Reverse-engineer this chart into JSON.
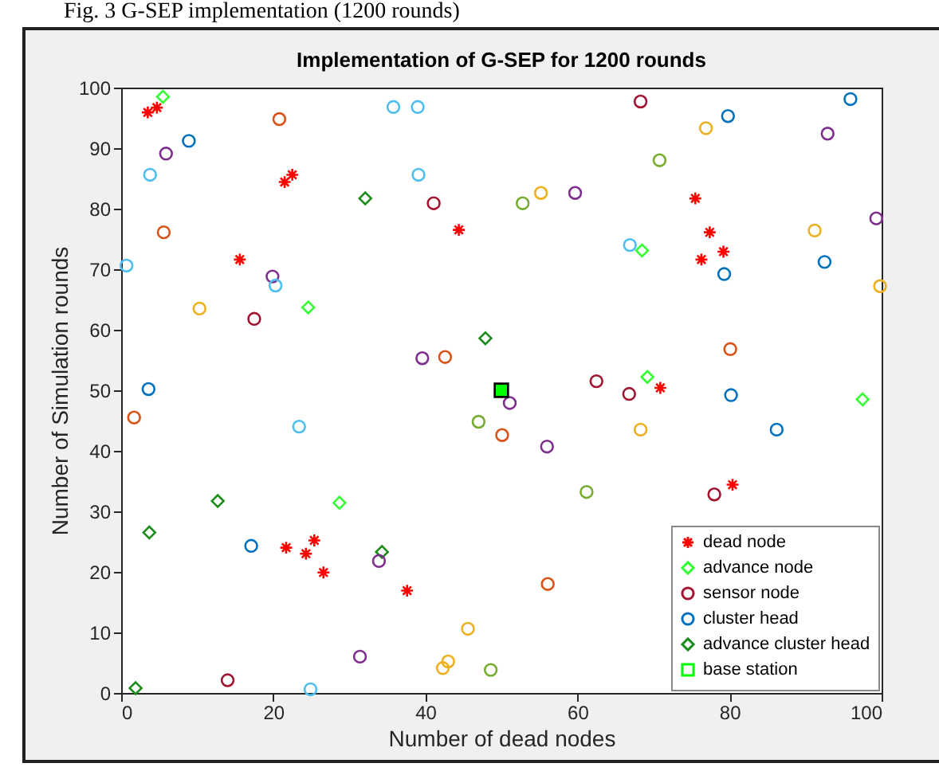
{
  "chart_data": {
    "type": "scatter",
    "title": "Implementation of G-SEP for 1200 rounds",
    "xlabel": "Number of dead nodes",
    "ylabel": "Number of Simulation rounds",
    "annotations": [
      "Fig. 3 G-SEP implementation (1200 rounds)"
    ],
    "xlim": [
      0,
      100
    ],
    "ylim": [
      0,
      100
    ],
    "xticks": [
      0,
      20,
      40,
      60,
      80,
      100
    ],
    "yticks": [
      0,
      10,
      20,
      30,
      40,
      50,
      60,
      70,
      80,
      90,
      100
    ],
    "grid": false,
    "legend": "bottom right",
    "series": [
      {
        "name": "dead node",
        "marker": "cross",
        "color": "#ff0000",
        "x": [
          3.5,
          4.7,
          15.6,
          21.5,
          22.5,
          44.4,
          75.5,
          77.4,
          79.2,
          76.3,
          21.7,
          24.3,
          25.4,
          26.6,
          37.6,
          70.9,
          80.4
        ],
        "values": [
          95.9,
          96.7,
          71.6,
          84.4,
          85.6,
          76.5,
          81.7,
          76.1,
          72.9,
          71.6,
          24.0,
          23.0,
          25.2,
          19.9,
          16.9,
          50.4,
          34.4
        ]
      },
      {
        "name": "advance node",
        "marker": "diamond",
        "color": "#33ff33",
        "x": [
          5.5,
          24.6,
          68.5,
          28.7,
          69.2,
          97.5
        ],
        "values": [
          98.5,
          63.7,
          73.1,
          31.4,
          52.2,
          48.5
        ]
      },
      {
        "name": "sensor node",
        "marker": "circle",
        "color": "#a2142f",
        "x": [
          5.9,
          3.8,
          5.6,
          0.7,
          10.3,
          19.9,
          20.3,
          17.5,
          20.8,
          35.8,
          39.0,
          39.1,
          41.1,
          52.8,
          39.6,
          42.6,
          68.3,
          76.9,
          79.8,
          92.9,
          70.8,
          55.2,
          59.7,
          66.9,
          79.3,
          91.2,
          92.5,
          99.3,
          99.8,
          80.1,
          1.7,
          23.4,
          51.1,
          47.0,
          50.1,
          17.1,
          33.9,
          45.6,
          42.3,
          43.0,
          48.6,
          31.4,
          14.0,
          24.9,
          62.5,
          66.8,
          80.2,
          86.2,
          68.3,
          56.0,
          61.2,
          78.0,
          56.1
        ],
        "values": [
          89.1,
          85.6,
          76.1,
          70.6,
          63.5,
          68.8,
          67.3,
          61.8,
          94.8,
          96.8,
          96.8,
          85.6,
          80.9,
          80.9,
          55.3,
          55.5,
          97.7,
          93.3,
          95.3,
          92.4,
          88.0,
          82.6,
          82.6,
          74.0,
          69.2,
          76.4,
          71.2,
          78.4,
          67.2,
          56.8,
          45.5,
          44.0,
          47.9,
          44.8,
          42.6,
          24.3,
          21.8,
          10.6,
          4.1,
          5.2,
          3.8,
          6.0,
          2.1,
          0.6,
          51.5,
          49.4,
          49.2,
          43.5,
          43.5,
          40.7,
          33.2,
          32.8,
          18.0
        ],
        "colors": [
          "#7e2f8e",
          "#4dbeee",
          "#d95319",
          "#4dbeee",
          "#edb120",
          "#7e2f8e",
          "#4dbeee",
          "#a2142f",
          "#d95319",
          "#4dbeee",
          "#4dbeee",
          "#4dbeee",
          "#a2142f",
          "#77ac30",
          "#7e2f8e",
          "#d95319",
          "#a2142f",
          "#edb120",
          "#0072bd",
          "#7e2f8e",
          "#77ac30",
          "#edb120",
          "#7e2f8e",
          "#4dbeee",
          "#0072bd",
          "#edb120",
          "#0072bd",
          "#7e2f8e",
          "#edb120",
          "#d95319",
          "#d95319",
          "#4dbeee",
          "#7e2f8e",
          "#77ac30",
          "#d95319",
          "#0072bd",
          "#7e2f8e",
          "#edb120",
          "#edb120",
          "#edb120",
          "#77ac30",
          "#7e2f8e",
          "#a2142f",
          "#4dbeee",
          "#a2142f",
          "#a2142f",
          "#0072bd",
          "#0072bd",
          "#edb120",
          "#7e2f8e",
          "#77ac30",
          "#a2142f",
          "#d95319"
        ]
      },
      {
        "name": "cluster head",
        "marker": "circle",
        "color": "#0072bd",
        "x": [
          8.9,
          95.9,
          3.6
        ],
        "values": [
          91.2,
          98.1,
          50.2
        ]
      },
      {
        "name": "advance cluster head",
        "marker": "diamond",
        "color": "#1a8c1a",
        "x": [
          32.1,
          47.9,
          12.7,
          3.7,
          34.3,
          1.9
        ],
        "values": [
          81.7,
          58.6,
          31.7,
          26.5,
          23.3,
          0.8
        ]
      },
      {
        "name": "base station",
        "marker": "square",
        "color": "#00ff00",
        "x": [
          50
        ],
        "values": [
          50
        ]
      }
    ]
  }
}
